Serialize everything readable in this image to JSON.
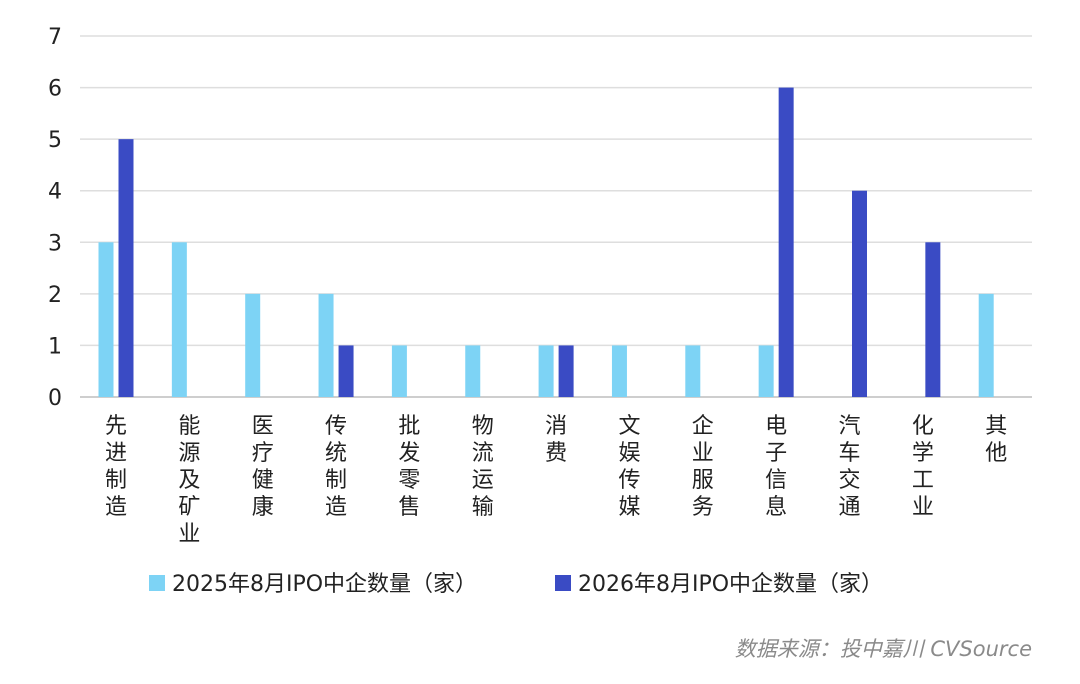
{
  "chart_data": {
    "type": "bar",
    "title": "",
    "xlabel": "",
    "ylabel": "",
    "ylim": [
      0,
      7
    ],
    "yticks": [
      0,
      1,
      2,
      3,
      4,
      5,
      6,
      7
    ],
    "grid": true,
    "legend_position": "bottom",
    "categories": [
      "先进制造",
      "能源及矿业",
      "医疗健康",
      "传统制造",
      "批发零售",
      "物流运输",
      "消费",
      "文娱传媒",
      "企业服务",
      "电子信息",
      "汽车交通",
      "化学工业",
      "其他"
    ],
    "series": [
      {
        "name": "2025年8月IPO中企数量（家）",
        "color": "#7dd3f5",
        "values": [
          3,
          3,
          2,
          2,
          1,
          1,
          1,
          1,
          1,
          1,
          0,
          0,
          2
        ]
      },
      {
        "name": "2026年8月IPO中企数量（家）",
        "color": "#3a4bc4",
        "values": [
          5,
          0,
          0,
          1,
          0,
          0,
          1,
          0,
          0,
          6,
          4,
          3,
          0
        ]
      }
    ]
  },
  "source": "数据来源：投中嘉川 CVSource"
}
